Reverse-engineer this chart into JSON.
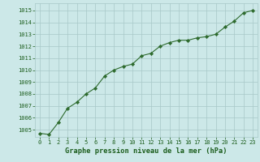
{
  "x": [
    0,
    1,
    2,
    3,
    4,
    5,
    6,
    7,
    8,
    9,
    10,
    11,
    12,
    13,
    14,
    15,
    16,
    17,
    18,
    19,
    20,
    21,
    22,
    23
  ],
  "y": [
    1004.7,
    1004.6,
    1005.6,
    1006.8,
    1007.3,
    1008.0,
    1008.5,
    1009.5,
    1010.0,
    1010.3,
    1010.5,
    1011.2,
    1011.4,
    1012.0,
    1012.3,
    1012.5,
    1012.5,
    1012.7,
    1012.8,
    1013.0,
    1013.6,
    1014.1,
    1014.8,
    1015.0
  ],
  "line_color": "#2d6a2d",
  "marker_color": "#2d6a2d",
  "bg_color": "#cce8e8",
  "grid_color": "#a8c8c8",
  "xlabel": "Graphe pression niveau de la mer (hPa)",
  "xlabel_color": "#1a5c1a",
  "ylabel_ticks": [
    1005,
    1006,
    1007,
    1008,
    1009,
    1010,
    1011,
    1012,
    1013,
    1014,
    1015
  ],
  "xlim": [
    -0.5,
    23.5
  ],
  "ylim": [
    1004.4,
    1015.6
  ],
  "tick_color": "#1a5c1a",
  "tick_fontsize": 5.0,
  "xlabel_fontsize": 6.2,
  "line_width": 0.8,
  "marker_size": 2.2
}
